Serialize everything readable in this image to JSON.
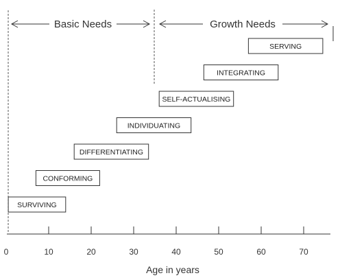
{
  "headers": {
    "basic": "Basic Needs",
    "growth": "Growth Needs"
  },
  "stages": [
    {
      "label": "SURVIVING",
      "start_age": 0.5,
      "end_age": 14
    },
    {
      "label": "CONFORMING",
      "start_age": 7,
      "end_age": 22
    },
    {
      "label": "DIFFERENTIATING",
      "start_age": 16,
      "end_age": 33.5
    },
    {
      "label": "INDIVIDUATING",
      "start_age": 26,
      "end_age": 43.5
    },
    {
      "label": "SELF-ACTUALISING",
      "start_age": 36,
      "end_age": 53.5
    },
    {
      "label": "INTEGRATING",
      "start_age": 46.5,
      "end_age": 64
    },
    {
      "label": "SERVING",
      "start_age": 57,
      "end_age": 74.5
    }
  ],
  "axis": {
    "title": "Age in years",
    "ticks": [
      "0",
      "10",
      "20",
      "30",
      "40",
      "50",
      "60",
      "70"
    ],
    "tick_values": [
      0,
      10,
      20,
      30,
      40,
      50,
      60,
      70
    ],
    "range": [
      0,
      76
    ],
    "basic_growth_boundary_age": 35
  },
  "colors": {
    "line": "#333333",
    "box_border": "#333333",
    "dashed": "#555555"
  }
}
